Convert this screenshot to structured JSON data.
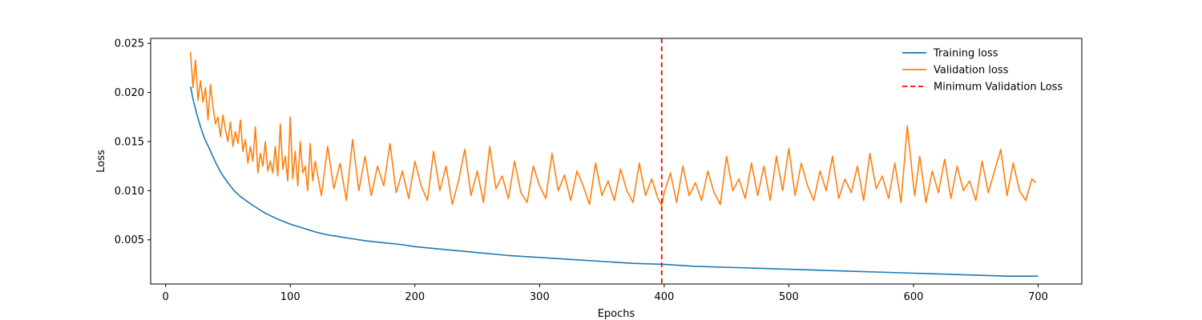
{
  "chart_data": {
    "type": "line",
    "title": "",
    "xlabel": "Epochs",
    "ylabel": "Loss",
    "xlim": [
      -12,
      735
    ],
    "ylim": [
      0.0005,
      0.0255
    ],
    "xticks": [
      0,
      100,
      200,
      300,
      400,
      500,
      600,
      700
    ],
    "xtick_labels": [
      "0",
      "100",
      "200",
      "300",
      "400",
      "500",
      "600",
      "700"
    ],
    "yticks": [
      0.005,
      0.01,
      0.015,
      0.02,
      0.025
    ],
    "ytick_labels": [
      "0.005",
      "0.010",
      "0.015",
      "0.020",
      "0.025"
    ],
    "grid": false,
    "legend_position": "top-right",
    "series": [
      {
        "name": "Training loss",
        "color": "#1f77b4",
        "style": "solid",
        "x": [
          20,
          22,
          25,
          28,
          31,
          35,
          40,
          45,
          50,
          55,
          60,
          70,
          80,
          90,
          100,
          110,
          120,
          130,
          140,
          150,
          160,
          175,
          190,
          200,
          225,
          250,
          275,
          300,
          325,
          350,
          375,
          400,
          425,
          450,
          475,
          500,
          525,
          550,
          575,
          600,
          625,
          650,
          675,
          700
        ],
        "y": [
          0.0206,
          0.0193,
          0.0178,
          0.0165,
          0.0154,
          0.0143,
          0.0129,
          0.0117,
          0.0108,
          0.01,
          0.0094,
          0.0085,
          0.0077,
          0.0071,
          0.0066,
          0.0062,
          0.0058,
          0.0055,
          0.0053,
          0.0051,
          0.0049,
          0.0047,
          0.0045,
          0.0043,
          0.004,
          0.0037,
          0.0034,
          0.0032,
          0.003,
          0.0028,
          0.0026,
          0.0025,
          0.0023,
          0.0022,
          0.0021,
          0.002,
          0.0019,
          0.0018,
          0.0017,
          0.0016,
          0.0015,
          0.0014,
          0.0013,
          0.0013
        ]
      },
      {
        "name": "Validation loss",
        "color": "#ff7f0e",
        "style": "solid",
        "x": [
          20,
          22,
          24,
          26,
          28,
          30,
          32,
          34,
          36,
          38,
          40,
          42,
          44,
          46,
          48,
          50,
          52,
          54,
          56,
          58,
          60,
          62,
          64,
          66,
          68,
          70,
          72,
          74,
          76,
          78,
          80,
          82,
          84,
          86,
          88,
          90,
          92,
          94,
          96,
          98,
          100,
          102,
          104,
          106,
          108,
          110,
          112,
          114,
          116,
          118,
          120,
          125,
          130,
          135,
          140,
          145,
          150,
          155,
          160,
          165,
          170,
          175,
          180,
          185,
          190,
          195,
          200,
          205,
          210,
          215,
          220,
          225,
          230,
          235,
          240,
          245,
          250,
          255,
          260,
          265,
          270,
          275,
          280,
          285,
          290,
          295,
          300,
          305,
          310,
          315,
          320,
          325,
          330,
          335,
          340,
          345,
          350,
          355,
          360,
          365,
          370,
          375,
          380,
          385,
          390,
          395,
          398,
          400,
          405,
          410,
          415,
          420,
          425,
          430,
          435,
          440,
          445,
          450,
          455,
          460,
          465,
          470,
          475,
          480,
          485,
          490,
          495,
          500,
          505,
          510,
          515,
          520,
          525,
          530,
          535,
          540,
          545,
          550,
          555,
          560,
          565,
          570,
          575,
          580,
          585,
          590,
          595,
          600,
          601,
          605,
          610,
          615,
          620,
          625,
          630,
          635,
          640,
          645,
          650,
          655,
          660,
          665,
          670,
          675,
          680,
          685,
          690,
          695,
          698
        ],
        "y": [
          0.0241,
          0.0205,
          0.0233,
          0.0192,
          0.0212,
          0.019,
          0.0205,
          0.0172,
          0.0208,
          0.0186,
          0.0168,
          0.0175,
          0.0155,
          0.0177,
          0.0162,
          0.015,
          0.017,
          0.0145,
          0.016,
          0.0148,
          0.0172,
          0.014,
          0.0152,
          0.0128,
          0.0145,
          0.013,
          0.0165,
          0.0118,
          0.0138,
          0.0125,
          0.015,
          0.012,
          0.013,
          0.0118,
          0.0145,
          0.0115,
          0.0168,
          0.0122,
          0.0135,
          0.011,
          0.0175,
          0.0112,
          0.014,
          0.0105,
          0.015,
          0.0118,
          0.0125,
          0.01,
          0.0148,
          0.011,
          0.013,
          0.0095,
          0.0145,
          0.0102,
          0.0128,
          0.009,
          0.0152,
          0.01,
          0.0135,
          0.0095,
          0.0125,
          0.0105,
          0.0148,
          0.0098,
          0.012,
          0.0092,
          0.013,
          0.0105,
          0.009,
          0.014,
          0.01,
          0.0125,
          0.0086,
          0.011,
          0.0142,
          0.0095,
          0.012,
          0.0088,
          0.0145,
          0.0102,
          0.0115,
          0.0092,
          0.013,
          0.0098,
          0.0088,
          0.0125,
          0.0105,
          0.0092,
          0.0138,
          0.01,
          0.0116,
          0.009,
          0.012,
          0.0105,
          0.0086,
          0.0128,
          0.0095,
          0.011,
          0.009,
          0.0122,
          0.01,
          0.0088,
          0.0128,
          0.0095,
          0.0112,
          0.0092,
          0.0085,
          0.0098,
          0.0118,
          0.0088,
          0.0125,
          0.0095,
          0.0108,
          0.009,
          0.012,
          0.0098,
          0.0086,
          0.0135,
          0.01,
          0.0112,
          0.0092,
          0.0128,
          0.0095,
          0.0125,
          0.009,
          0.0135,
          0.01,
          0.0143,
          0.0095,
          0.0128,
          0.0105,
          0.009,
          0.012,
          0.01,
          0.0135,
          0.0092,
          0.0112,
          0.0098,
          0.0125,
          0.009,
          0.0138,
          0.0102,
          0.0115,
          0.0092,
          0.0128,
          0.0088,
          0.0166,
          0.0105,
          0.0095,
          0.0135,
          0.0088,
          0.012,
          0.0098,
          0.0132,
          0.0092,
          0.0125,
          0.01,
          0.011,
          0.009,
          0.013,
          0.0098,
          0.012,
          0.0142,
          0.0095,
          0.0128,
          0.01,
          0.009,
          0.0112,
          0.0108
        ]
      }
    ],
    "vlines": [
      {
        "name": "Minimum Validation Loss",
        "x": 398,
        "color": "#ff0000",
        "style": "dashed"
      }
    ]
  }
}
